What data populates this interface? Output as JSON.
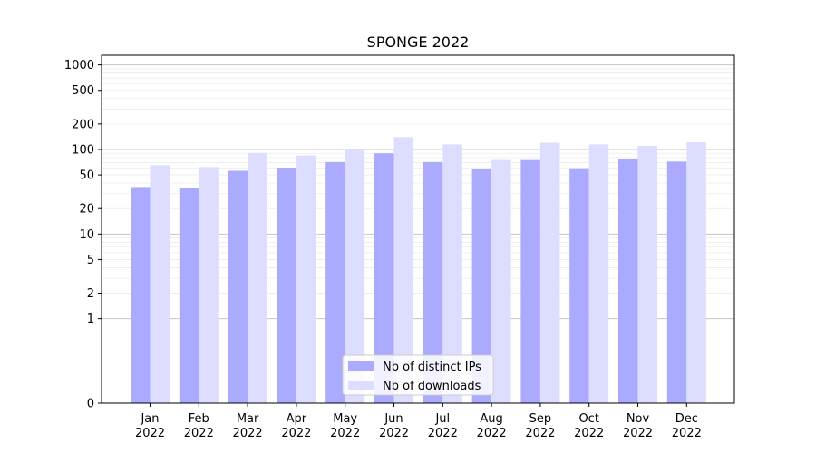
{
  "chart_data": {
    "type": "bar",
    "title": "SPONGE 2022",
    "xlabel": "",
    "ylabel": "",
    "yscale": "symlog",
    "ylim": [
      0,
      1300
    ],
    "y_ticks": [
      0,
      1,
      2,
      5,
      10,
      20,
      50,
      100,
      200,
      500,
      1000
    ],
    "y_tick_labels": [
      "0",
      "1",
      "2",
      "5",
      "10",
      "20",
      "50",
      "100",
      "200",
      "500",
      "1000"
    ],
    "categories": [
      "Jan 2022",
      "Feb 2022",
      "Mar 2022",
      "Apr 2022",
      "May 2022",
      "Jun 2022",
      "Jul 2022",
      "Aug 2022",
      "Sep 2022",
      "Oct 2022",
      "Nov 2022",
      "Dec 2022"
    ],
    "category_lines": [
      [
        "Jan",
        "2022"
      ],
      [
        "Feb",
        "2022"
      ],
      [
        "Mar",
        "2022"
      ],
      [
        "Apr",
        "2022"
      ],
      [
        "May",
        "2022"
      ],
      [
        "Jun",
        "2022"
      ],
      [
        "Jul",
        "2022"
      ],
      [
        "Aug",
        "2022"
      ],
      [
        "Sep",
        "2022"
      ],
      [
        "Oct",
        "2022"
      ],
      [
        "Nov",
        "2022"
      ],
      [
        "Dec",
        "2022"
      ]
    ],
    "series": [
      {
        "name": "Nb of distinct IPs",
        "color": "#aaaaff",
        "values": [
          36,
          35,
          56,
          61,
          71,
          90,
          71,
          59,
          75,
          60,
          78,
          72
        ]
      },
      {
        "name": "Nb of downloads",
        "color": "#ddddff",
        "values": [
          65,
          62,
          91,
          85,
          100,
          140,
          115,
          75,
          120,
          115,
          110,
          122
        ]
      }
    ],
    "grid": true,
    "legend_position": "bottom-center"
  }
}
